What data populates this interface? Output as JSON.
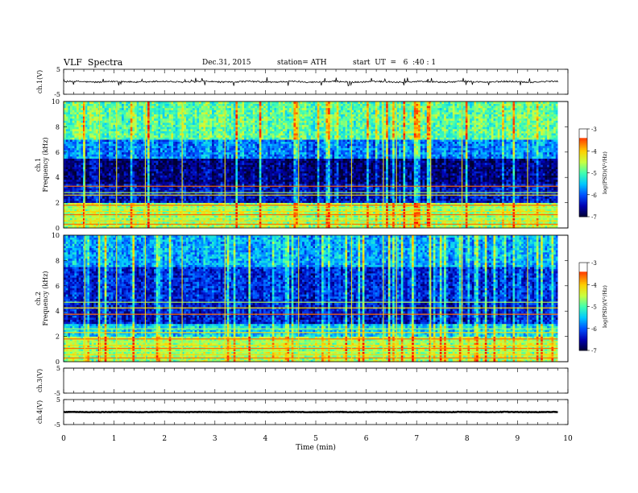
{
  "header": {
    "title": "VLF  Spectra",
    "date": "Dec.31, 2015",
    "station": "station= ATH",
    "start": "start  UT  =   6  :40 : 1"
  },
  "colors": {
    "spectrogram_scale": [
      "#000033",
      "#0000b0",
      "#0050ff",
      "#00c8ff",
      "#40ffb0",
      "#c8ff40",
      "#ffd000",
      "#ff5000",
      "#ff0000",
      "#ffffff"
    ],
    "trace": "#000000"
  },
  "chart_data": [
    {
      "type": "line",
      "name": "ch1-waveform",
      "ylabel": "ch.1(V)",
      "ylim": [
        -5,
        5
      ],
      "y_ticks": [
        "5",
        "-5"
      ],
      "x_range": [
        0,
        10
      ],
      "data_extent_min": [
        0,
        9.8
      ],
      "trace_level_v": 0.0,
      "trace_amplitude_v": 0.6,
      "spike_max_v": 1.8
    },
    {
      "type": "heatmap",
      "name": "ch1-spectrogram",
      "ylabel": "ch.1 Frequency  (kHz)",
      "ylim": [
        0,
        10
      ],
      "y_ticks": [
        "0",
        "2",
        "4",
        "6",
        "8",
        "10"
      ],
      "x_range": [
        0,
        10
      ],
      "data_extent_min": [
        0,
        9.8
      ],
      "colorbar": {
        "label": "log(PSD)(V²/Hz)",
        "range": [
          -7,
          -3
        ],
        "ticks": [
          "-3",
          "-4",
          "-5",
          "-6",
          "-7"
        ]
      },
      "bands_khz": [
        {
          "from": 0,
          "to": 2,
          "log_psd": -4.6,
          "description": "dense narrowband lines"
        },
        {
          "from": 2,
          "to": 3.5,
          "log_psd": -6.4
        },
        {
          "from": 3.5,
          "to": 5.5,
          "log_psd": -6.7
        },
        {
          "from": 5.5,
          "to": 7,
          "log_psd": -5.8
        },
        {
          "from": 7,
          "to": 10,
          "log_psd": -4.9
        }
      ],
      "narrowband_lines_khz": [
        0.3,
        0.55,
        0.8,
        1.05,
        1.3,
        1.55,
        1.8,
        2.6,
        2.8,
        3.3
      ],
      "impulsive_events_min": [
        0.42,
        0.71,
        1.05,
        1.62,
        2.35,
        3.2,
        4.66,
        5.71,
        6.34,
        6.6,
        7.28,
        7.9,
        9.2
      ]
    },
    {
      "type": "heatmap",
      "name": "ch2-spectrogram",
      "ylabel": "ch.2 Frequency  (kHz)",
      "ylim": [
        0,
        10
      ],
      "y_ticks": [
        "0",
        "2",
        "4",
        "6",
        "8",
        "10"
      ],
      "x_range": [
        0,
        10
      ],
      "data_extent_min": [
        0,
        9.8
      ],
      "colorbar": {
        "label": "log(PSD)(V²/Hz)",
        "range": [
          -7,
          -3
        ],
        "ticks": [
          "-3",
          "-4",
          "-5",
          "-6",
          "-7"
        ]
      },
      "bands_khz": [
        {
          "from": 0,
          "to": 2,
          "log_psd": -4.6,
          "description": "dense narrowband lines"
        },
        {
          "from": 2,
          "to": 3,
          "log_psd": -5.4
        },
        {
          "from": 3,
          "to": 5,
          "log_psd": -6.3
        },
        {
          "from": 5,
          "to": 7.5,
          "log_psd": -6.2
        },
        {
          "from": 7.5,
          "to": 10,
          "log_psd": -5.6
        }
      ],
      "narrowband_lines_khz": [
        0.3,
        0.55,
        0.8,
        1.05,
        1.3,
        1.55,
        1.8,
        2.3,
        2.6,
        3.75,
        4.25,
        4.7
      ],
      "impulsive_events_min": [
        0.42,
        0.71,
        1.05,
        1.62,
        2.35,
        3.2,
        4.66,
        5.71,
        6.34,
        6.6,
        7.28,
        7.9,
        9.2
      ]
    },
    {
      "type": "line",
      "name": "ch3-waveform",
      "ylabel": "ch.3(V)",
      "ylim": [
        -5,
        5
      ],
      "y_ticks": [
        "5",
        "-5"
      ],
      "x_range": [
        0,
        10
      ],
      "data_extent_min": [
        0,
        9.8
      ],
      "trace_level_v": 5.0,
      "trace_amplitude_v": 0.0
    },
    {
      "type": "line",
      "name": "ch4-waveform",
      "ylabel": "ch.4(V)",
      "ylim": [
        -5,
        5
      ],
      "y_ticks": [
        "5",
        "-5"
      ],
      "x_range": [
        0,
        10
      ],
      "data_extent_min": [
        0,
        9.8
      ],
      "trace_level_v": 0.0,
      "trace_amplitude_v": 0.2
    },
    {
      "type": "axis",
      "name": "time-axis",
      "xlabel": "Time  (min)",
      "xlim": [
        0,
        10
      ],
      "x_ticks": [
        "0",
        "1",
        "2",
        "3",
        "4",
        "5",
        "6",
        "7",
        "8",
        "9",
        "10"
      ]
    }
  ]
}
